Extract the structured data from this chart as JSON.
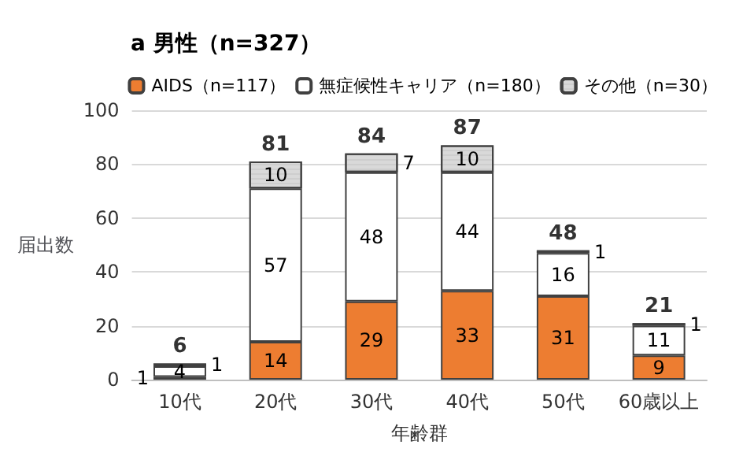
{
  "chart_data": {
    "type": "bar",
    "title": "a 男性（n=327）",
    "xlabel": "年齢群",
    "ylabel": "届出数",
    "categories": [
      "10代",
      "20代",
      "30代",
      "40代",
      "50代",
      "60歳以上"
    ],
    "series": [
      {
        "name": "AIDS（n=117）",
        "color": "#ed7d31",
        "values": [
          1,
          14,
          29,
          33,
          31,
          9
        ]
      },
      {
        "name": "無症候性キャリア（n=180）",
        "color": "#ffffff",
        "values": [
          4,
          57,
          48,
          44,
          16,
          11
        ]
      },
      {
        "name": "その他（n=30）",
        "color": "#d9d9d9",
        "values": [
          1,
          10,
          7,
          10,
          1,
          1
        ]
      }
    ],
    "stacked": true,
    "data_labels": true,
    "totals": [
      "6",
      "81",
      "84",
      "87",
      "48",
      "21"
    ],
    "ylim": [
      0,
      100
    ],
    "yticks": [
      0,
      20,
      40,
      60,
      80,
      100
    ],
    "grid": "y",
    "legend": "top right"
  }
}
